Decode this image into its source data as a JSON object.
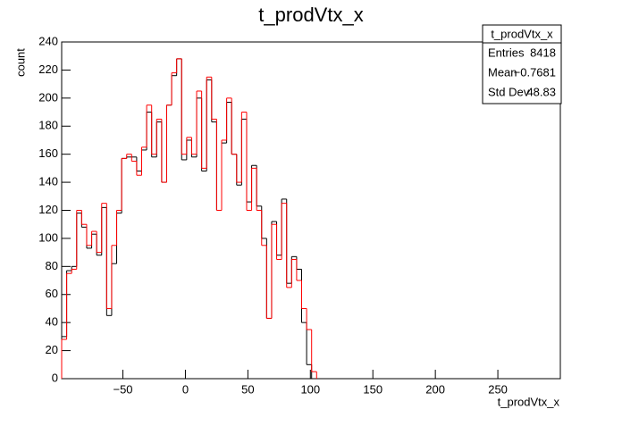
{
  "chart_data": {
    "type": "histogram",
    "title": "t_prodVtx_x",
    "x_label": "t_prodVtx_x",
    "y_label": "count",
    "xlim": [
      -99,
      300
    ],
    "ylim": [
      0,
      240
    ],
    "xticks": [
      {
        "value": -50,
        "label": "−50"
      },
      0,
      50,
      100,
      150,
      200,
      250
    ],
    "yticks": [
      0,
      20,
      40,
      60,
      80,
      100,
      120,
      140,
      160,
      180,
      200,
      220,
      240
    ],
    "bins": [
      -99,
      -95,
      -91,
      -87,
      -83,
      -79,
      -75,
      -71,
      -67,
      -63,
      -59,
      -55,
      -51,
      -47,
      -43,
      -39,
      -35,
      -31,
      -27,
      -23,
      -19,
      -15,
      -11,
      -7,
      -3,
      1,
      5,
      9,
      13,
      17,
      21,
      25,
      29,
      33,
      37,
      41,
      45,
      49,
      53,
      57,
      61,
      65,
      69,
      73,
      77,
      81,
      85,
      89,
      93,
      97,
      101,
      105
    ],
    "series": [
      {
        "name": "black",
        "color": "#000000",
        "values": [
          30,
          77,
          80,
          118,
          108,
          93,
          103,
          88,
          122,
          45,
          82,
          118,
          157,
          158,
          158,
          148,
          163,
          190,
          158,
          183,
          140,
          195,
          216,
          228,
          156,
          170,
          158,
          200,
          148,
          213,
          183,
          120,
          168,
          197,
          160,
          138,
          185,
          126,
          152,
          123,
          100,
          43,
          112,
          88,
          128,
          68,
          87,
          78,
          40,
          10,
          0
        ]
      },
      {
        "name": "red",
        "color": "#ff0000",
        "values": [
          28,
          75,
          78,
          120,
          110,
          95,
          105,
          90,
          125,
          50,
          95,
          120,
          157,
          160,
          155,
          145,
          165,
          195,
          160,
          185,
          140,
          195,
          218,
          228,
          160,
          172,
          160,
          205,
          150,
          215,
          185,
          120,
          170,
          200,
          160,
          140,
          190,
          120,
          150,
          120,
          95,
          43,
          110,
          85,
          125,
          65,
          85,
          70,
          50,
          35,
          5
        ]
      }
    ],
    "stats": {
      "title": "t_prodVtx_x",
      "rows": [
        {
          "label": "Entries",
          "value": 8418
        },
        {
          "label": "Mean",
          "value": {
            "value": -0.7681,
            "label": "−0.7681"
          }
        },
        {
          "label": "Std Dev",
          "value": 48.83
        }
      ]
    }
  }
}
